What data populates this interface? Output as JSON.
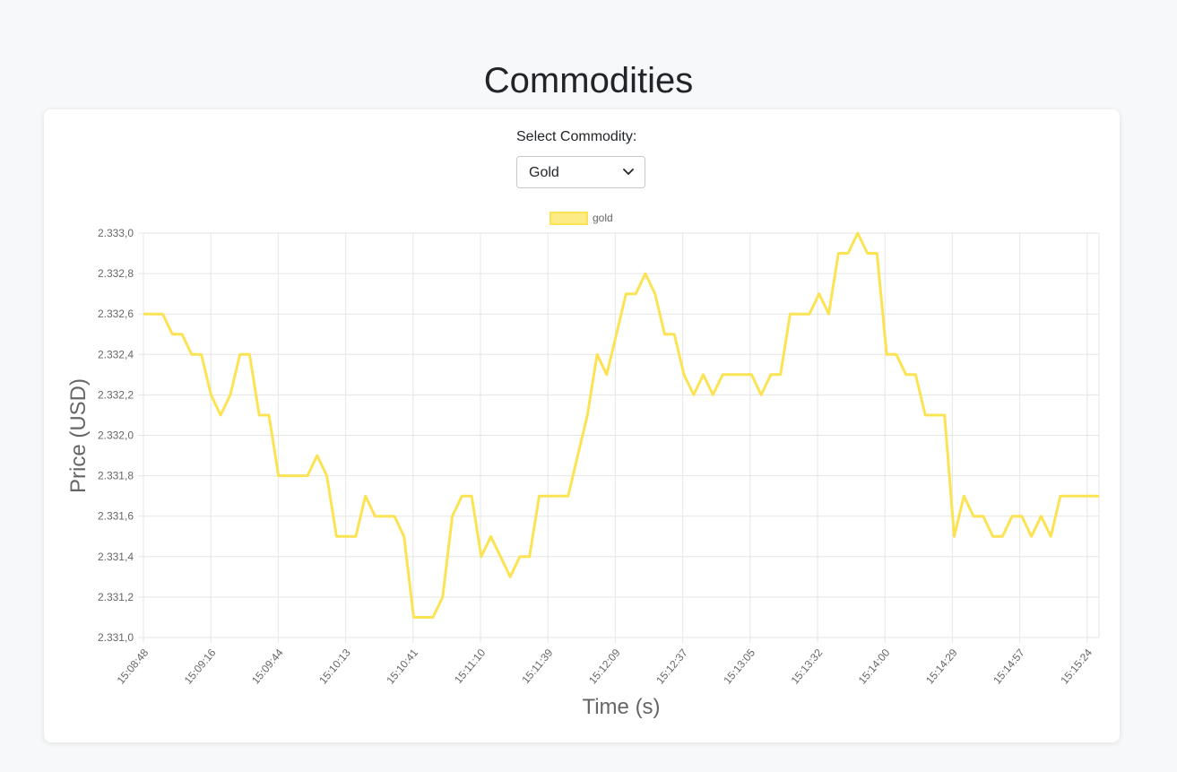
{
  "page": {
    "title": "Commodities"
  },
  "selector": {
    "label": "Select Commodity:",
    "value": "Gold"
  },
  "colors": {
    "line": "#fce353",
    "grid": "#e5e5e5",
    "text": "#666666"
  },
  "chart_data": {
    "type": "line",
    "title": "",
    "xlabel": "Time (s)",
    "ylabel": "Price (USD)",
    "ylim": [
      2331.0,
      2333.0
    ],
    "y_ticks": [
      "2.331,0",
      "2.331,2",
      "2.331,4",
      "2.331,6",
      "2.331,8",
      "2.332,0",
      "2.332,2",
      "2.332,4",
      "2.332,6",
      "2.332,8",
      "2.333,0"
    ],
    "x_ticks": [
      "15:08:48",
      "15:09:16",
      "15:09:44",
      "15:10:13",
      "15:10:41",
      "15:11:10",
      "15:11:39",
      "15:12:09",
      "15:12:37",
      "15:13:05",
      "15:13:32",
      "15:14:00",
      "15:14:29",
      "15:14:57",
      "15:15:24"
    ],
    "legend": {
      "position": "top",
      "entries": [
        "gold"
      ]
    },
    "grid": true,
    "series": [
      {
        "name": "gold",
        "values": [
          2332.6,
          2332.6,
          2332.6,
          2332.5,
          2332.5,
          2332.4,
          2332.4,
          2332.2,
          2332.1,
          2332.2,
          2332.4,
          2332.4,
          2332.1,
          2332.1,
          2331.8,
          2331.8,
          2331.8,
          2331.8,
          2331.9,
          2331.8,
          2331.5,
          2331.5,
          2331.5,
          2331.7,
          2331.6,
          2331.6,
          2331.6,
          2331.5,
          2331.1,
          2331.1,
          2331.1,
          2331.2,
          2331.6,
          2331.7,
          2331.7,
          2331.4,
          2331.5,
          2331.4,
          2331.3,
          2331.4,
          2331.4,
          2331.7,
          2331.7,
          2331.7,
          2331.7,
          2331.9,
          2332.1,
          2332.4,
          2332.3,
          2332.5,
          2332.7,
          2332.7,
          2332.8,
          2332.7,
          2332.5,
          2332.5,
          2332.3,
          2332.2,
          2332.3,
          2332.2,
          2332.3,
          2332.3,
          2332.3,
          2332.3,
          2332.2,
          2332.3,
          2332.3,
          2332.6,
          2332.6,
          2332.6,
          2332.7,
          2332.6,
          2332.9,
          2332.9,
          2333.0,
          2332.9,
          2332.9,
          2332.4,
          2332.4,
          2332.3,
          2332.3,
          2332.1,
          2332.1,
          2332.1,
          2331.5,
          2331.7,
          2331.6,
          2331.6,
          2331.5,
          2331.5,
          2331.6,
          2331.6,
          2331.5,
          2331.6,
          2331.5,
          2331.7,
          2331.7,
          2331.7,
          2331.7,
          2331.7
        ]
      }
    ]
  }
}
